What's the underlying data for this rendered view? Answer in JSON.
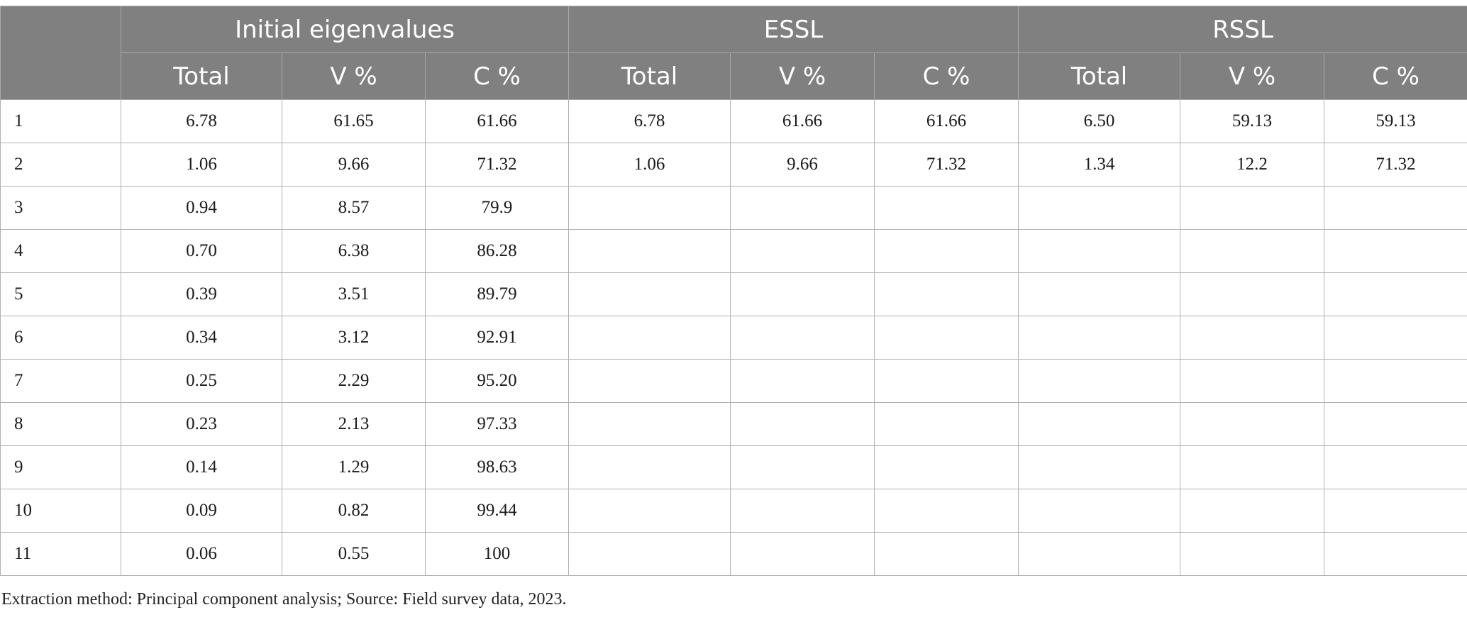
{
  "table": {
    "group_headers": [
      "Initial eigenvalues",
      "ESSL",
      "RSSL"
    ],
    "sub_headers": [
      "Total",
      "V %",
      "C %",
      "Total",
      "V %",
      "C %",
      "Total",
      "V %",
      "C %"
    ],
    "rows": [
      {
        "label": "1",
        "cells": [
          "6.78",
          "61.65",
          "61.66",
          "6.78",
          "61.66",
          "61.66",
          "6.50",
          "59.13",
          "59.13"
        ]
      },
      {
        "label": "2",
        "cells": [
          "1.06",
          "9.66",
          "71.32",
          "1.06",
          "9.66",
          "71.32",
          "1.34",
          "12.2",
          "71.32"
        ]
      },
      {
        "label": "3",
        "cells": [
          "0.94",
          "8.57",
          "79.9",
          "",
          "",
          "",
          "",
          "",
          ""
        ]
      },
      {
        "label": "4",
        "cells": [
          "0.70",
          "6.38",
          "86.28",
          "",
          "",
          "",
          "",
          "",
          ""
        ]
      },
      {
        "label": "5",
        "cells": [
          "0.39",
          "3.51",
          "89.79",
          "",
          "",
          "",
          "",
          "",
          ""
        ]
      },
      {
        "label": "6",
        "cells": [
          "0.34",
          "3.12",
          "92.91",
          "",
          "",
          "",
          "",
          "",
          ""
        ]
      },
      {
        "label": "7",
        "cells": [
          "0.25",
          "2.29",
          "95.20",
          "",
          "",
          "",
          "",
          "",
          ""
        ]
      },
      {
        "label": "8",
        "cells": [
          "0.23",
          "2.13",
          "97.33",
          "",
          "",
          "",
          "",
          "",
          ""
        ]
      },
      {
        "label": "9",
        "cells": [
          "0.14",
          "1.29",
          "98.63",
          "",
          "",
          "",
          "",
          "",
          ""
        ]
      },
      {
        "label": "10",
        "cells": [
          "0.09",
          "0.82",
          "99.44",
          "",
          "",
          "",
          "",
          "",
          ""
        ]
      },
      {
        "label": "11",
        "cells": [
          "0.06",
          "0.55",
          "100",
          "",
          "",
          "",
          "",
          "",
          ""
        ]
      }
    ]
  },
  "footnote": "Extraction method: Principal component analysis; Source: Field survey data, 2023.",
  "colors": {
    "header_background": "#808080",
    "header_text": "#ffffff",
    "grid_line": "#b0b0b0"
  }
}
